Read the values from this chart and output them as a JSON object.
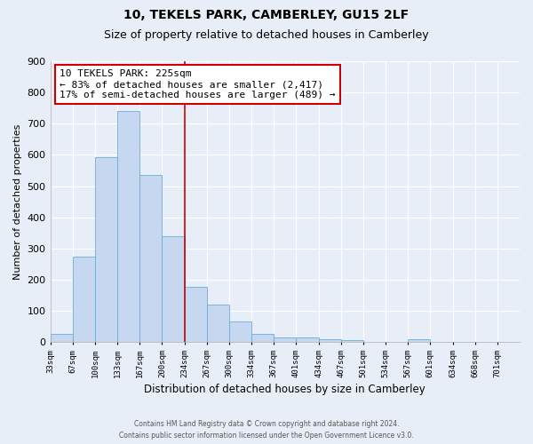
{
  "title": "10, TEKELS PARK, CAMBERLEY, GU15 2LF",
  "subtitle": "Size of property relative to detached houses in Camberley",
  "xlabel": "Distribution of detached houses by size in Camberley",
  "ylabel": "Number of detached properties",
  "bin_labels": [
    "33sqm",
    "67sqm",
    "100sqm",
    "133sqm",
    "167sqm",
    "200sqm",
    "234sqm",
    "267sqm",
    "300sqm",
    "334sqm",
    "367sqm",
    "401sqm",
    "434sqm",
    "467sqm",
    "501sqm",
    "534sqm",
    "567sqm",
    "601sqm",
    "634sqm",
    "668sqm",
    "701sqm"
  ],
  "bar_heights": [
    27,
    275,
    593,
    740,
    537,
    338,
    176,
    120,
    65,
    25,
    15,
    15,
    8,
    5,
    0,
    0,
    8,
    0,
    0,
    0,
    0
  ],
  "bar_color": "#c5d8ef",
  "bar_edge_color": "#6baed6",
  "vline_x": 6.0,
  "vline_color": "#cc0000",
  "annotation_title": "10 TEKELS PARK: 225sqm",
  "annotation_line1": "← 83% of detached houses are smaller (2,417)",
  "annotation_line2": "17% of semi-detached houses are larger (489) →",
  "annotation_box_color": "#ffffff",
  "annotation_box_edge": "#cc0000",
  "ylim": [
    0,
    900
  ],
  "yticks": [
    0,
    100,
    200,
    300,
    400,
    500,
    600,
    700,
    800,
    900
  ],
  "footer_line1": "Contains HM Land Registry data © Crown copyright and database right 2024.",
  "footer_line2": "Contains public sector information licensed under the Open Government Licence v3.0.",
  "bg_color": "#e8eef8",
  "plot_bg_color": "#e8eef8",
  "grid_color": "#ffffff",
  "title_fontsize": 10,
  "subtitle_fontsize": 9
}
